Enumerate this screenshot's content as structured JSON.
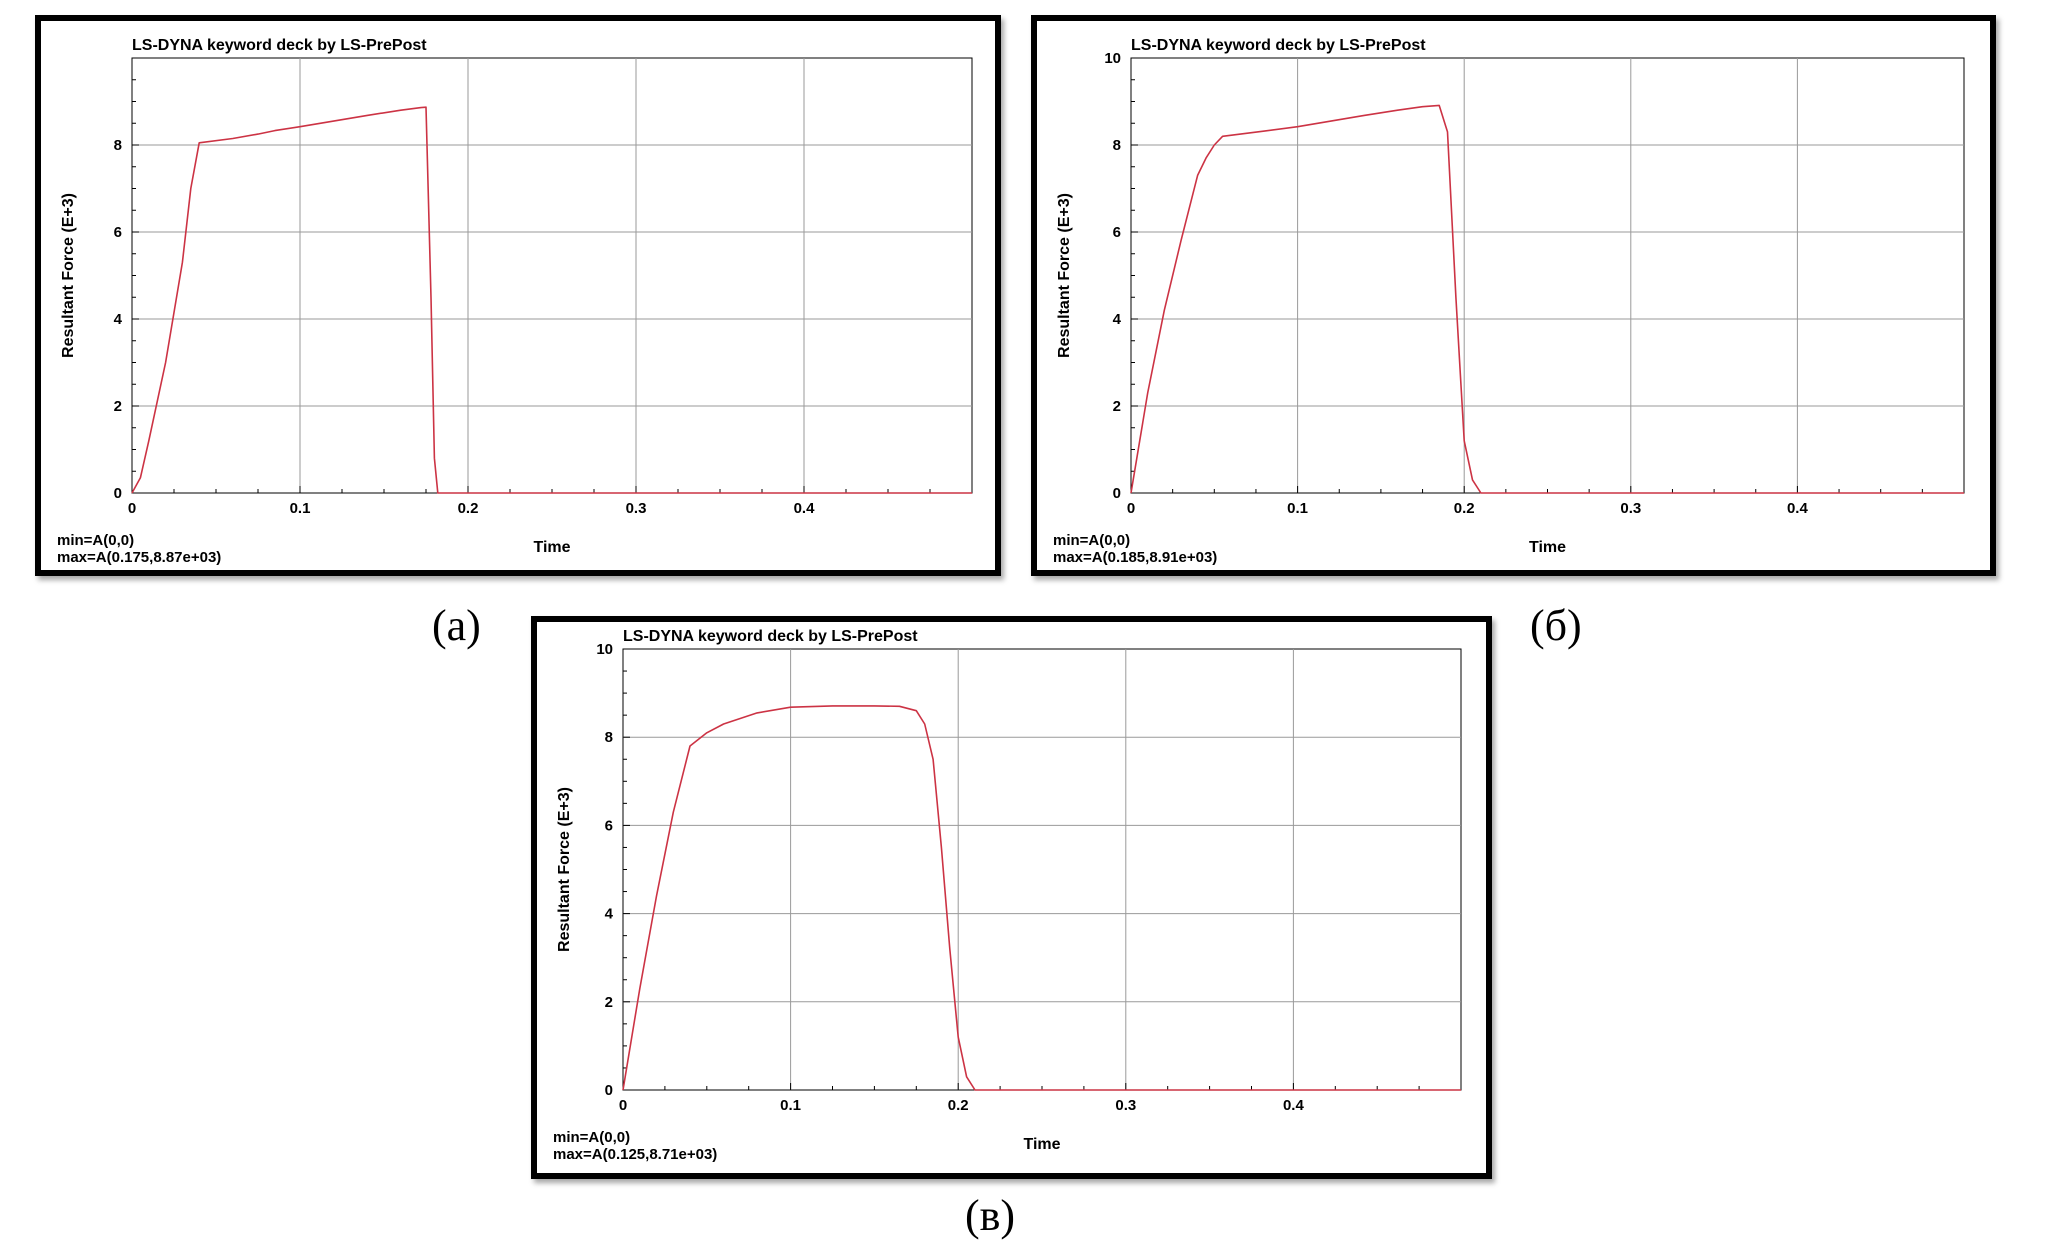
{
  "chart_data": [
    {
      "type": "line",
      "title": "LS-DYNA keyword deck by LS-PrePost",
      "xlabel": "Time",
      "ylabel": "Resultant Force (E+3)",
      "xlim": [
        0,
        0.5
      ],
      "ylim": [
        0,
        10
      ],
      "x_ticks": [
        "0",
        "0.1",
        "0.2",
        "0.3",
        "0.4"
      ],
      "y_ticks": [
        "0",
        "2",
        "4",
        "6",
        "8"
      ],
      "grid": true,
      "caption": "(a)",
      "min_label": "min=A(0,0)",
      "max_label": "max=A(0.175,8.87e+03)",
      "line_color": "#cc3344",
      "series": [
        {
          "x": [
            0,
            0.005,
            0.01,
            0.02,
            0.03,
            0.035,
            0.04,
            0.06,
            0.075,
            0.085,
            0.1,
            0.12,
            0.14,
            0.16,
            0.172,
            0.175,
            0.178,
            0.18,
            0.182,
            0.5
          ],
          "y": [
            0,
            0.35,
            1.2,
            3.0,
            5.3,
            7.0,
            8.05,
            8.15,
            8.25,
            8.33,
            8.42,
            8.55,
            8.68,
            8.8,
            8.86,
            8.87,
            4.5,
            0.8,
            0,
            0
          ]
        }
      ]
    },
    {
      "type": "line",
      "title": "LS-DYNA keyword deck by LS-PrePost",
      "xlabel": "Time",
      "ylabel": "Resultant Force (E+3)",
      "xlim": [
        0,
        0.5
      ],
      "ylim": [
        0,
        10
      ],
      "x_ticks": [
        "0",
        "0.1",
        "0.2",
        "0.3",
        "0.4"
      ],
      "y_ticks": [
        "0",
        "2",
        "4",
        "6",
        "8",
        "10"
      ],
      "grid": true,
      "caption": "(б)",
      "min_label": "min=A(0,0)",
      "max_label": "max=A(0.185,8.91e+03)",
      "line_color": "#cc3344",
      "series": [
        {
          "x": [
            0,
            0.01,
            0.02,
            0.03,
            0.04,
            0.045,
            0.05,
            0.055,
            0.08,
            0.1,
            0.12,
            0.14,
            0.16,
            0.175,
            0.185,
            0.19,
            0.195,
            0.2,
            0.205,
            0.21,
            0.5
          ],
          "y": [
            0,
            2.3,
            4.2,
            5.8,
            7.3,
            7.7,
            8.0,
            8.2,
            8.32,
            8.42,
            8.55,
            8.68,
            8.8,
            8.88,
            8.91,
            8.3,
            4.5,
            1.2,
            0.3,
            0,
            0
          ]
        }
      ]
    },
    {
      "type": "line",
      "title": "LS-DYNA keyword deck by LS-PrePost",
      "xlabel": "Time",
      "ylabel": "Resultant Force (E+3)",
      "xlim": [
        0,
        0.5
      ],
      "ylim": [
        0,
        10
      ],
      "x_ticks": [
        "0",
        "0.1",
        "0.2",
        "0.3",
        "0.4"
      ],
      "y_ticks": [
        "0",
        "2",
        "4",
        "6",
        "8",
        "10"
      ],
      "grid": true,
      "caption": "(в)",
      "min_label": "min=A(0,0)",
      "max_label": "max=A(0.125,8.71e+03)",
      "line_color": "#cc3344",
      "series": [
        {
          "x": [
            0,
            0.01,
            0.02,
            0.03,
            0.04,
            0.05,
            0.06,
            0.08,
            0.1,
            0.125,
            0.15,
            0.165,
            0.175,
            0.18,
            0.185,
            0.19,
            0.195,
            0.2,
            0.205,
            0.21,
            0.5
          ],
          "y": [
            0,
            2.3,
            4.4,
            6.3,
            7.8,
            8.1,
            8.3,
            8.55,
            8.68,
            8.71,
            8.71,
            8.7,
            8.6,
            8.3,
            7.5,
            5.5,
            3.2,
            1.2,
            0.3,
            0,
            0
          ]
        }
      ]
    }
  ]
}
